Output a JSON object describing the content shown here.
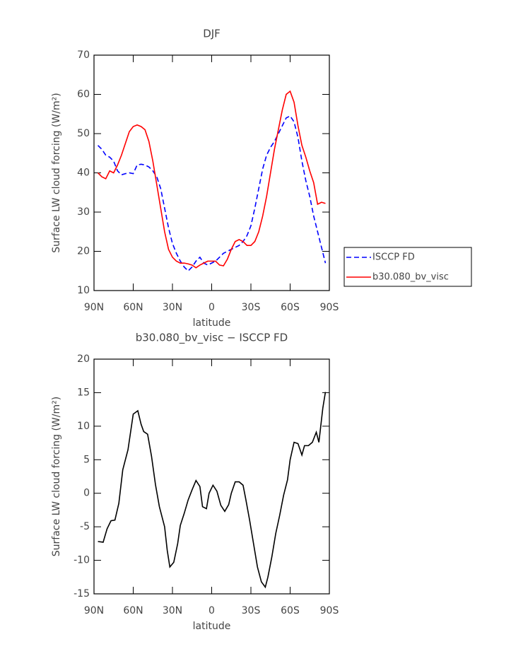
{
  "chart_data": [
    {
      "type": "line",
      "title": "DJF",
      "xlabel": "latitude",
      "ylabel": "Surface LW cloud forcing (W/m²)",
      "x": [
        87,
        84,
        81,
        78,
        75,
        72,
        69,
        66,
        63,
        60,
        57,
        54,
        51,
        48,
        45,
        42,
        39,
        36,
        33,
        30,
        27,
        24,
        21,
        18,
        15,
        12,
        9,
        6,
        3,
        0,
        -3,
        -6,
        -9,
        -12,
        -15,
        -18,
        -21,
        -24,
        -27,
        -30,
        -33,
        -36,
        -39,
        -42,
        -45,
        -48,
        -51,
        -54,
        -57,
        -60,
        -63,
        -66,
        -69,
        -72,
        -75,
        -78,
        -81,
        -84,
        -87
      ],
      "series": [
        {
          "name": "ISCCP FD",
          "color": "#0000ff",
          "line_style": "dashed",
          "values": [
            47,
            46,
            44.5,
            44,
            43,
            40.5,
            39.5,
            39.8,
            40,
            39.8,
            42,
            42.2,
            42,
            41.5,
            40.5,
            39,
            36,
            31,
            26,
            22,
            19.5,
            17.5,
            16,
            15,
            16,
            17.5,
            18.5,
            17,
            16.5,
            17,
            17.5,
            18.5,
            19.5,
            20,
            20.5,
            21,
            21.5,
            22.5,
            24,
            26.5,
            31,
            36,
            41,
            44.5,
            46.5,
            48,
            50,
            52,
            54,
            54.5,
            53,
            49,
            43,
            38,
            34,
            29,
            25,
            21,
            17
          ]
        },
        {
          "name": "b30.080_bv_visc",
          "color": "#ff0000",
          "line_style": "solid",
          "values": [
            40,
            39,
            38.5,
            40.5,
            40,
            42,
            44.5,
            47.5,
            50.5,
            51.8,
            52.2,
            51.8,
            51,
            48,
            43,
            37,
            31,
            25,
            20.5,
            18.5,
            17.5,
            17,
            17,
            16.8,
            16.5,
            15.8,
            16.5,
            17,
            17.5,
            17.5,
            17.5,
            16.5,
            16.3,
            18,
            20.5,
            22.5,
            23,
            22.5,
            21.5,
            21.5,
            22.5,
            25,
            29,
            34,
            40,
            46,
            51,
            56,
            60,
            60.8,
            58,
            52,
            47,
            44,
            40.5,
            37.5,
            32,
            32.5,
            32.2
          ]
        }
      ],
      "xlim": [
        90,
        -90
      ],
      "xticks": [
        {
          "value": 90,
          "label": "90N"
        },
        {
          "value": 60,
          "label": "60N"
        },
        {
          "value": 30,
          "label": "30N"
        },
        0,
        {
          "value": -30,
          "label": "30S"
        },
        {
          "value": -60,
          "label": "60S"
        },
        {
          "value": -90,
          "label": "90S"
        }
      ],
      "ylim": [
        10,
        70
      ],
      "yticks": [
        10,
        20,
        30,
        40,
        50,
        60,
        70
      ],
      "legend": "right"
    },
    {
      "type": "line",
      "title": "b30.080_bv_visc − ISCCP FD",
      "xlabel": "latitude",
      "ylabel": "Surface LW cloud forcing (W/m²)",
      "x": [
        87,
        83,
        80,
        77,
        74,
        71,
        68,
        64,
        60,
        56.5,
        54,
        52,
        49,
        46,
        43,
        40,
        36,
        34,
        32,
        29,
        26,
        24,
        21,
        18,
        15,
        12,
        9,
        7,
        4,
        2,
        -1,
        -4,
        -7,
        -10,
        -13,
        -15,
        -18,
        -21,
        -24,
        -26,
        -29,
        -32,
        -35,
        -38,
        -41,
        -43,
        -46,
        -49,
        -52,
        -55,
        -58,
        -60,
        -63,
        -66,
        -69,
        -71,
        -74,
        -77,
        -80,
        -82,
        -85,
        -87
      ],
      "series": [
        {
          "color": "#000000",
          "line_style": "solid",
          "values": [
            -7.2,
            -7.3,
            -5.3,
            -4.1,
            -4,
            -1.5,
            3.5,
            6.5,
            11.8,
            12.3,
            10.3,
            9.2,
            8.8,
            5.5,
            1.3,
            -2,
            -5,
            -8.5,
            -11,
            -10.3,
            -7.5,
            -4.8,
            -3,
            -1,
            0.5,
            1.9,
            1,
            -2,
            -2.3,
            0,
            1.2,
            0.3,
            -1.8,
            -2.7,
            -1.7,
            0,
            1.7,
            1.7,
            1.2,
            -0.8,
            -4,
            -7.5,
            -11,
            -13.2,
            -14,
            -12.5,
            -9.5,
            -6,
            -3.3,
            -0.3,
            2,
            5,
            7.6,
            7.4,
            5.7,
            7.1,
            7.1,
            7.6,
            9.1,
            7.6,
            12.7,
            15.1
          ]
        }
      ],
      "xlim": [
        90,
        -90
      ],
      "xticks": [
        {
          "value": 90,
          "label": "90N"
        },
        {
          "value": 60,
          "label": "60N"
        },
        {
          "value": 30,
          "label": "30N"
        },
        0,
        {
          "value": -30,
          "label": "30S"
        },
        {
          "value": -60,
          "label": "60S"
        },
        {
          "value": -90,
          "label": "90S"
        }
      ],
      "ylim": [
        -15,
        20
      ],
      "yticks": [
        -15,
        -10,
        -5,
        0,
        5,
        10,
        15,
        20
      ]
    }
  ]
}
